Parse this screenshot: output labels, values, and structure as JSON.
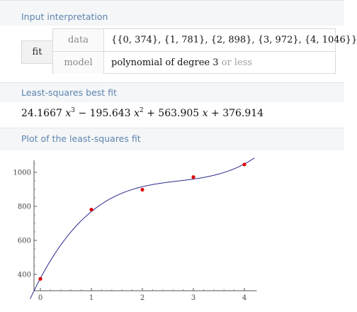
{
  "pods": {
    "input": {
      "title": "Input interpretation",
      "fit_label": "fit",
      "rows": [
        {
          "key": "data",
          "value": "{{0, 374}, {1, 781}, {2, 898}, {3, 972}, {4, 1046}}"
        },
        {
          "key": "model",
          "value_main": "polynomial of degree 3",
          "value_suffix": " or less"
        }
      ]
    },
    "best_fit": {
      "title": "Least-squares best fit",
      "terms": {
        "c3": "24.1667",
        "c2": "195.643",
        "c1": "563.905",
        "c0": "376.914",
        "var": "x",
        "exp3": "3",
        "exp2": "2",
        "minus": "−",
        "plus": "+"
      }
    },
    "plot": {
      "title": "Plot of the least-squares fit"
    }
  },
  "colors": {
    "pod_title": "#5e84ad",
    "curve": "#2a2a8e",
    "points": "#dd0000"
  },
  "chart_data": {
    "type": "scatter",
    "title": "",
    "xlabel": "",
    "ylabel": "",
    "xlim": [
      -0.2,
      4.2
    ],
    "ylim": [
      330,
      1080
    ],
    "x_ticks": [
      0,
      1,
      2,
      3,
      4
    ],
    "y_ticks": [
      400,
      600,
      800,
      1000
    ],
    "points": {
      "x": [
        0,
        1,
        2,
        3,
        4
      ],
      "y": [
        374,
        781,
        898,
        972,
        1046
      ]
    },
    "fit": {
      "model": "cubic",
      "coefficients": [
        376.914,
        563.905,
        -195.643,
        24.1667
      ]
    },
    "grid": false
  }
}
